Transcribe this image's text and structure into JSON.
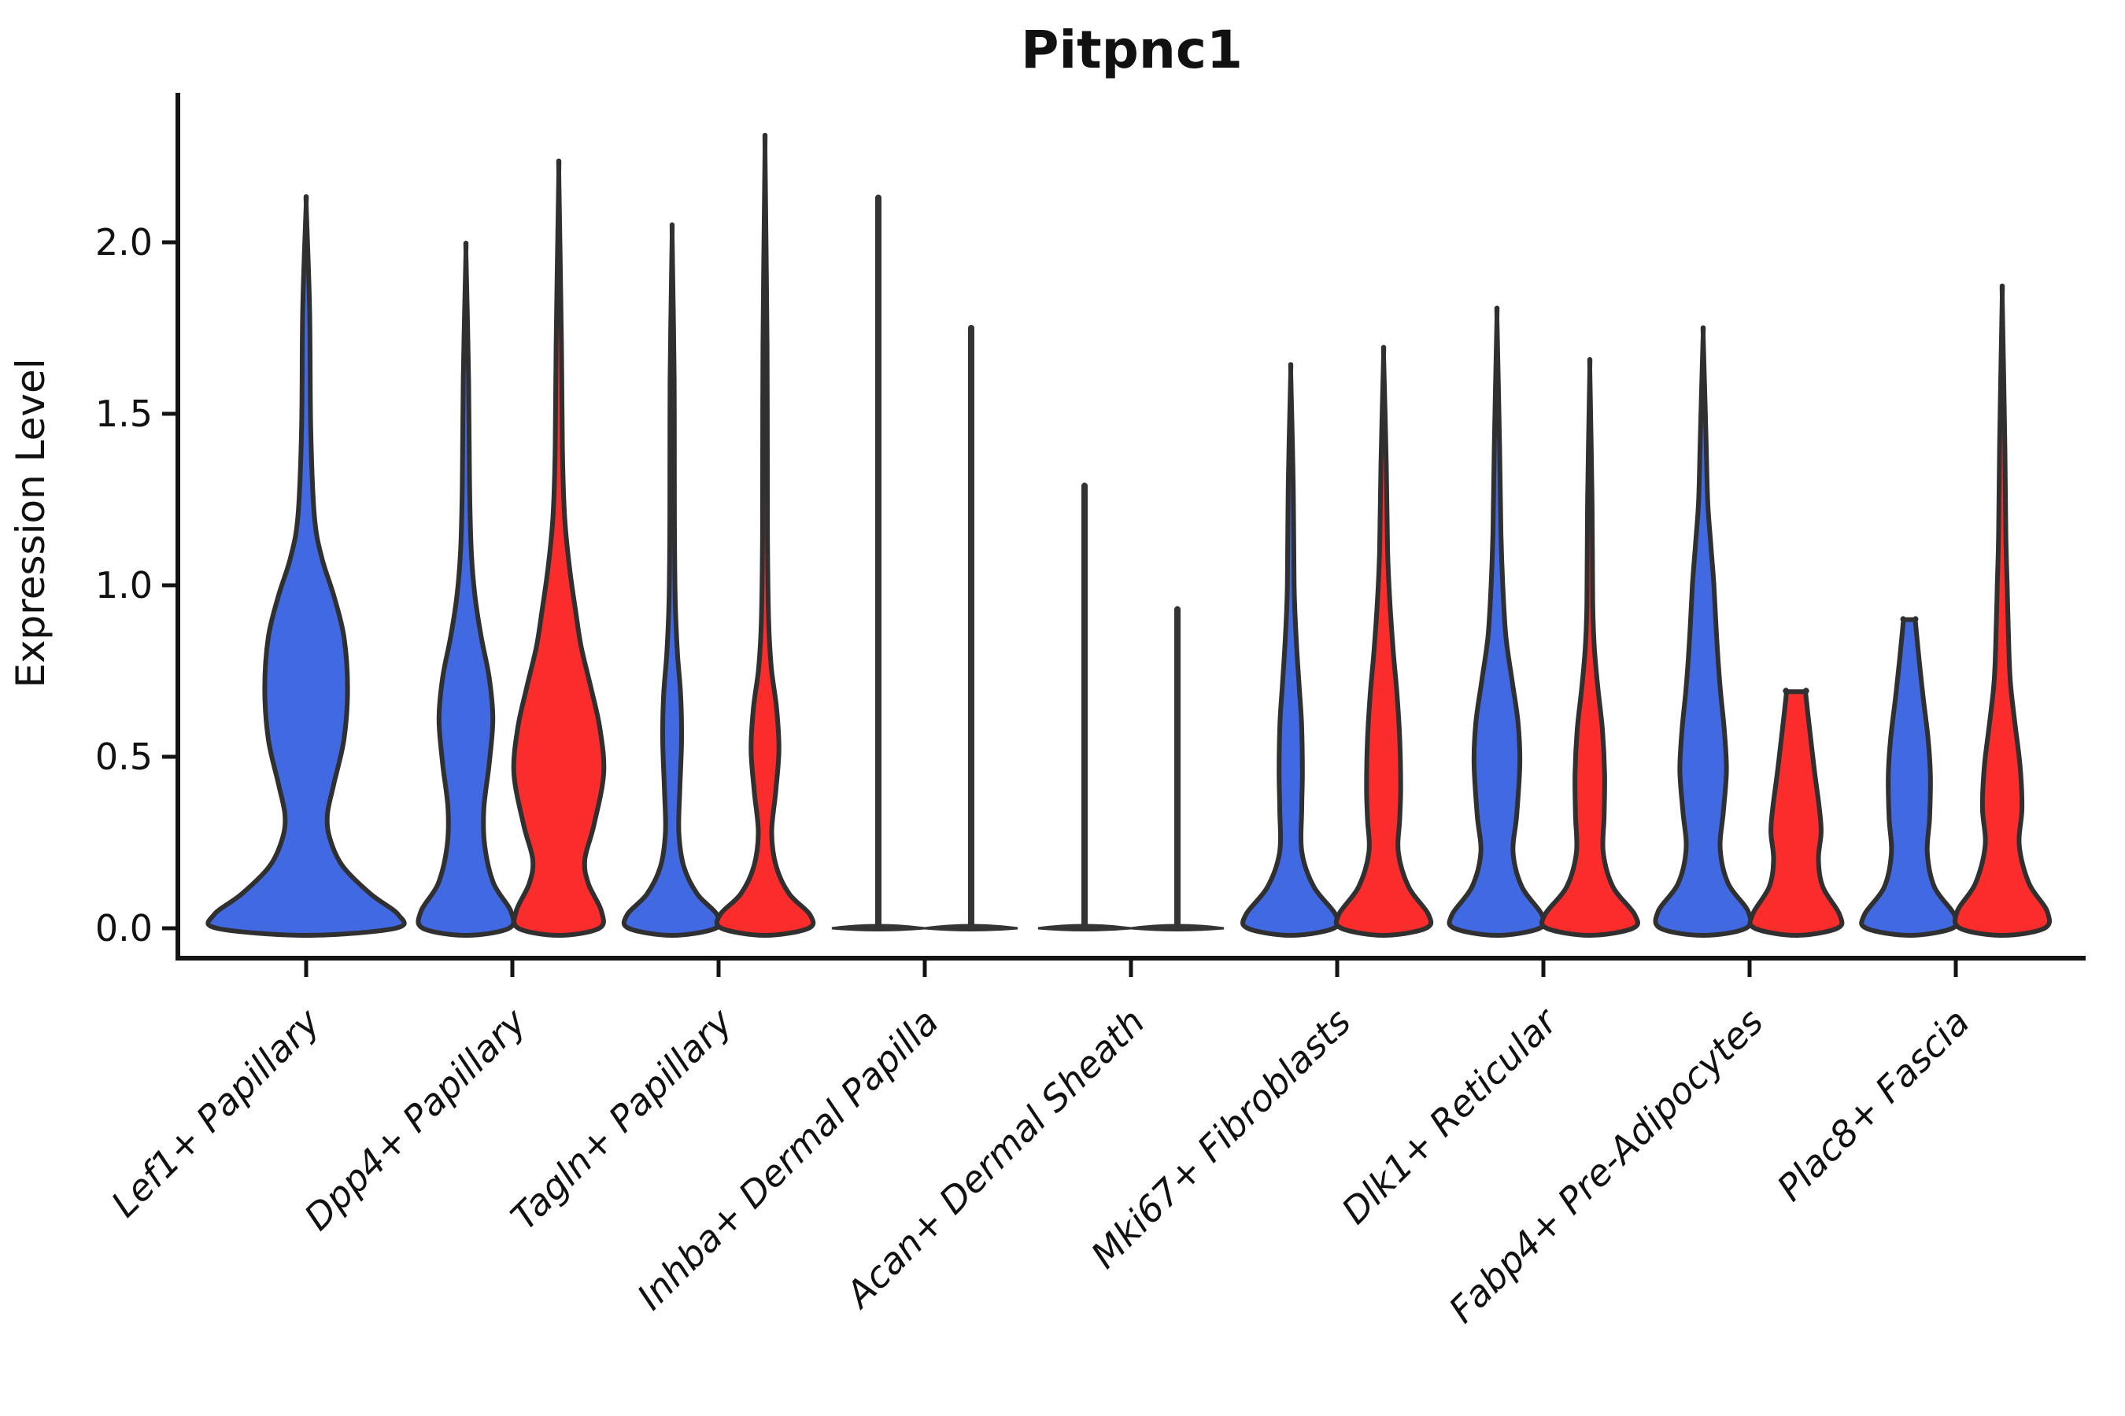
{
  "chart_data": {
    "type": "violin",
    "title": "Pitpnc1",
    "ylabel": "Expression Level",
    "xlabel": "",
    "grid": false,
    "legend": "none",
    "ylim": [
      -0.13,
      2.43
    ],
    "ytick_labels": [
      "0.0",
      "0.5",
      "1.0",
      "1.5",
      "2.0"
    ],
    "ytick_values": [
      0.0,
      0.5,
      1.0,
      1.5,
      2.0
    ],
    "palette": {
      "blue": "#4169E1",
      "red": "#FA2C2C",
      "outline": "#303030",
      "spike": "#343434",
      "axis": "#141414"
    },
    "categories": [
      "Lef1+ Papillary",
      "Dpp4+ Papillary",
      "Tagln+ Papillary",
      "Inhba+ Dermal Papilla",
      "Acan+ Dermal Sheath",
      "Mki67+ Fibroblasts",
      "Dlk1+ Reticular",
      "Fabp4+ Pre-Adipocytes",
      "Plac8+ Fascia"
    ],
    "groups": [
      {
        "category": "Lef1+ Papillary",
        "violins": [
          {
            "color": "blue",
            "layout": "center",
            "shape": "kde",
            "max": 2.11,
            "profile": [
              [
                0,
                0.97
              ],
              [
                0.04,
                1.0
              ],
              [
                0.1,
                0.7
              ],
              [
                0.18,
                0.4
              ],
              [
                0.26,
                0.26
              ],
              [
                0.33,
                0.23
              ],
              [
                0.42,
                0.3
              ],
              [
                0.55,
                0.41
              ],
              [
                0.7,
                0.45
              ],
              [
                0.85,
                0.41
              ],
              [
                0.97,
                0.3
              ],
              [
                1.08,
                0.17
              ],
              [
                1.2,
                0.09
              ],
              [
                1.45,
                0.05
              ],
              [
                1.8,
                0.038
              ],
              [
                2.11,
                0
              ]
            ]
          }
        ]
      },
      {
        "category": "Dpp4+ Papillary",
        "violins": [
          {
            "color": "blue",
            "layout": "left",
            "shape": "kde",
            "max": 1.97,
            "profile": [
              [
                0,
                0.96
              ],
              [
                0.05,
                1.0
              ],
              [
                0.13,
                0.62
              ],
              [
                0.24,
                0.42
              ],
              [
                0.35,
                0.4
              ],
              [
                0.48,
                0.52
              ],
              [
                0.61,
                0.6
              ],
              [
                0.73,
                0.52
              ],
              [
                0.85,
                0.34
              ],
              [
                0.97,
                0.2
              ],
              [
                1.1,
                0.12
              ],
              [
                1.3,
                0.08
              ],
              [
                1.6,
                0.06
              ],
              [
                1.97,
                0
              ]
            ]
          },
          {
            "color": "red",
            "layout": "right",
            "shape": "kde",
            "max": 2.2,
            "profile": [
              [
                0,
                0.9
              ],
              [
                0.05,
                0.95
              ],
              [
                0.13,
                0.66
              ],
              [
                0.2,
                0.58
              ],
              [
                0.3,
                0.78
              ],
              [
                0.45,
                1.0
              ],
              [
                0.58,
                0.92
              ],
              [
                0.7,
                0.72
              ],
              [
                0.82,
                0.5
              ],
              [
                0.92,
                0.38
              ],
              [
                1.05,
                0.24
              ],
              [
                1.2,
                0.13
              ],
              [
                1.4,
                0.08
              ],
              [
                1.7,
                0.06
              ],
              [
                2.2,
                0
              ]
            ]
          }
        ]
      },
      {
        "category": "Tagln+ Papillary",
        "violins": [
          {
            "color": "blue",
            "layout": "left",
            "shape": "kde",
            "max": 2.02,
            "profile": [
              [
                0,
                0.97
              ],
              [
                0.04,
                1.0
              ],
              [
                0.1,
                0.56
              ],
              [
                0.18,
                0.26
              ],
              [
                0.28,
                0.15
              ],
              [
                0.4,
                0.17
              ],
              [
                0.55,
                0.21
              ],
              [
                0.68,
                0.19
              ],
              [
                0.8,
                0.12
              ],
              [
                0.95,
                0.07
              ],
              [
                1.2,
                0.05
              ],
              [
                1.6,
                0.045
              ],
              [
                2.02,
                0
              ]
            ]
          },
          {
            "color": "red",
            "layout": "right",
            "shape": "kde",
            "max": 2.27,
            "profile": [
              [
                0,
                0.97
              ],
              [
                0.04,
                1.0
              ],
              [
                0.1,
                0.54
              ],
              [
                0.18,
                0.25
              ],
              [
                0.28,
                0.15
              ],
              [
                0.4,
                0.24
              ],
              [
                0.52,
                0.31
              ],
              [
                0.64,
                0.26
              ],
              [
                0.76,
                0.14
              ],
              [
                0.9,
                0.08
              ],
              [
                1.15,
                0.055
              ],
              [
                1.7,
                0.045
              ],
              [
                2.27,
                0
              ]
            ]
          }
        ]
      },
      {
        "category": "Inhba+ Dermal Papilla",
        "violins": [
          {
            "color": "none",
            "layout": "left",
            "shape": "spike",
            "max": 2.13,
            "profile": []
          },
          {
            "color": "none",
            "layout": "right",
            "shape": "spike",
            "max": 1.75,
            "profile": []
          }
        ]
      },
      {
        "category": "Acan+ Dermal Sheath",
        "violins": [
          {
            "color": "none",
            "layout": "left",
            "shape": "spike",
            "max": 1.29,
            "profile": []
          },
          {
            "color": "none",
            "layout": "right",
            "shape": "spike",
            "max": 0.93,
            "profile": []
          }
        ]
      },
      {
        "category": "Mki67+ Fibroblasts",
        "violins": [
          {
            "color": "blue",
            "layout": "left",
            "shape": "kde",
            "max": 1.62,
            "profile": [
              [
                0,
                0.96
              ],
              [
                0.04,
                1.0
              ],
              [
                0.12,
                0.52
              ],
              [
                0.22,
                0.25
              ],
              [
                0.35,
                0.245
              ],
              [
                0.46,
                0.26
              ],
              [
                0.6,
                0.24
              ],
              [
                0.72,
                0.18
              ],
              [
                0.85,
                0.12
              ],
              [
                1.0,
                0.075
              ],
              [
                1.3,
                0.055
              ],
              [
                1.62,
                0
              ]
            ]
          },
          {
            "color": "red",
            "layout": "right",
            "shape": "kde",
            "max": 1.67,
            "profile": [
              [
                0,
                0.94
              ],
              [
                0.04,
                1.0
              ],
              [
                0.12,
                0.56
              ],
              [
                0.22,
                0.33
              ],
              [
                0.32,
                0.36
              ],
              [
                0.41,
                0.38
              ],
              [
                0.55,
                0.36
              ],
              [
                0.68,
                0.3
              ],
              [
                0.8,
                0.22
              ],
              [
                0.95,
                0.14
              ],
              [
                1.1,
                0.09
              ],
              [
                1.35,
                0.06
              ],
              [
                1.67,
                0
              ]
            ]
          }
        ]
      },
      {
        "category": "Dlk1+ Reticular",
        "violins": [
          {
            "color": "blue",
            "layout": "left",
            "shape": "kde",
            "max": 1.78,
            "profile": [
              [
                0,
                0.95
              ],
              [
                0.04,
                1.0
              ],
              [
                0.12,
                0.56
              ],
              [
                0.22,
                0.36
              ],
              [
                0.33,
                0.44
              ],
              [
                0.48,
                0.51
              ],
              [
                0.6,
                0.47
              ],
              [
                0.72,
                0.34
              ],
              [
                0.85,
                0.2
              ],
              [
                1.0,
                0.13
              ],
              [
                1.15,
                0.09
              ],
              [
                1.4,
                0.06
              ],
              [
                1.78,
                0
              ]
            ]
          },
          {
            "color": "red",
            "layout": "right",
            "shape": "kde",
            "max": 1.63,
            "profile": [
              [
                0,
                0.96
              ],
              [
                0.04,
                1.0
              ],
              [
                0.12,
                0.52
              ],
              [
                0.22,
                0.3
              ],
              [
                0.33,
                0.32
              ],
              [
                0.45,
                0.33
              ],
              [
                0.58,
                0.28
              ],
              [
                0.7,
                0.18
              ],
              [
                0.82,
                0.1
              ],
              [
                0.95,
                0.065
              ],
              [
                1.25,
                0.05
              ],
              [
                1.63,
                0
              ]
            ]
          }
        ]
      },
      {
        "category": "Fabp4+ Pre-Adipocytes",
        "violins": [
          {
            "color": "blue",
            "layout": "left",
            "shape": "kde",
            "max": 1.73,
            "profile": [
              [
                0,
                0.95
              ],
              [
                0.05,
                1.0
              ],
              [
                0.13,
                0.56
              ],
              [
                0.23,
                0.38
              ],
              [
                0.34,
                0.45
              ],
              [
                0.46,
                0.52
              ],
              [
                0.58,
                0.47
              ],
              [
                0.7,
                0.38
              ],
              [
                0.85,
                0.3
              ],
              [
                1.0,
                0.24
              ],
              [
                1.12,
                0.17
              ],
              [
                1.25,
                0.1
              ],
              [
                1.45,
                0.06
              ],
              [
                1.73,
                0
              ]
            ]
          },
          {
            "color": "red",
            "layout": "right",
            "shape": "flat-top",
            "max": 0.69,
            "profile": [
              [
                0,
                0.92
              ],
              [
                0.04,
                0.97
              ],
              [
                0.12,
                0.6
              ],
              [
                0.2,
                0.5
              ],
              [
                0.28,
                0.56
              ],
              [
                0.35,
                0.52
              ],
              [
                0.45,
                0.42
              ],
              [
                0.55,
                0.33
              ],
              [
                0.63,
                0.26
              ],
              [
                0.69,
                0.21
              ]
            ]
          }
        ]
      },
      {
        "category": "Plac8+ Fascia",
        "violins": [
          {
            "color": "blue",
            "layout": "left",
            "shape": "flat-top",
            "max": 0.9,
            "profile": [
              [
                0,
                0.96
              ],
              [
                0.04,
                1.0
              ],
              [
                0.12,
                0.56
              ],
              [
                0.22,
                0.4
              ],
              [
                0.32,
                0.45
              ],
              [
                0.44,
                0.47
              ],
              [
                0.55,
                0.42
              ],
              [
                0.67,
                0.31
              ],
              [
                0.78,
                0.22
              ],
              [
                0.86,
                0.16
              ],
              [
                0.9,
                0.13
              ]
            ]
          },
          {
            "color": "red",
            "layout": "right",
            "shape": "kde",
            "max": 1.84,
            "profile": [
              [
                0,
                0.94
              ],
              [
                0.05,
                1.0
              ],
              [
                0.13,
                0.6
              ],
              [
                0.24,
                0.38
              ],
              [
                0.35,
                0.44
              ],
              [
                0.47,
                0.4
              ],
              [
                0.6,
                0.28
              ],
              [
                0.72,
                0.18
              ],
              [
                0.85,
                0.14
              ],
              [
                1.0,
                0.11
              ],
              [
                1.15,
                0.08
              ],
              [
                1.4,
                0.06
              ],
              [
                1.84,
                0
              ]
            ]
          }
        ]
      }
    ]
  }
}
